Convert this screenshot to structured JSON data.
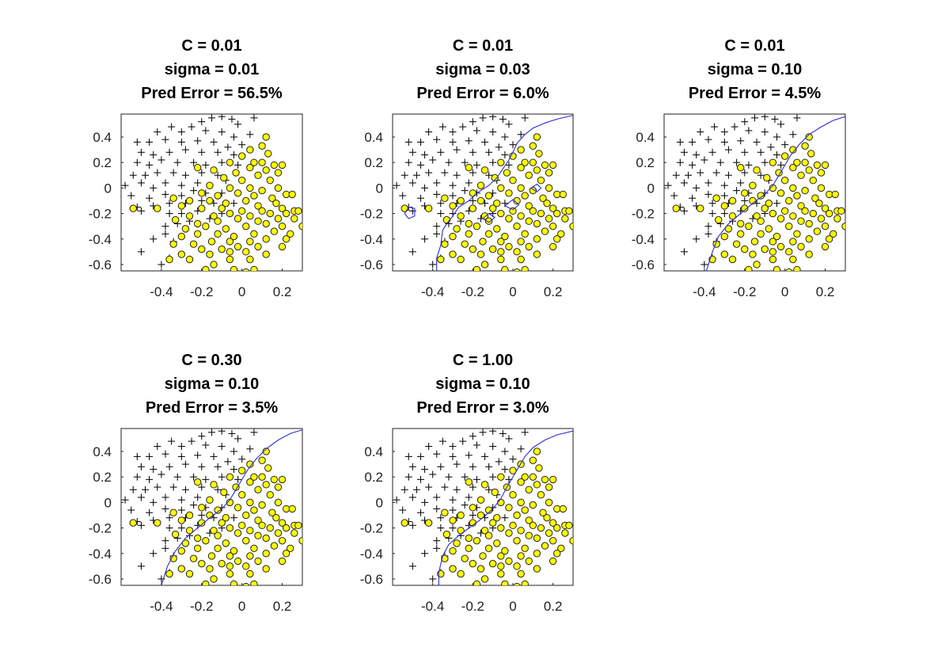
{
  "chart_data": [
    {
      "type": "scatter",
      "title": [
        "C = 0.01",
        "sigma = 0.01",
        "Pred Error = 56.5%"
      ],
      "xlim": [
        -0.6,
        0.3
      ],
      "ylim": [
        -0.65,
        0.58
      ],
      "xticks": [
        -0.4,
        -0.2,
        0,
        0.2
      ],
      "yticks": [
        0.4,
        0.2,
        0,
        -0.2,
        -0.4,
        -0.6
      ],
      "xticklabels": [
        "-0.4",
        "-0.2",
        "0",
        "0.2"
      ],
      "yticklabels": [
        "0.4",
        "0.2",
        "0",
        "-0.2",
        "-0.4",
        "-0.6"
      ],
      "decision_boundary": []
    },
    {
      "type": "scatter",
      "title": [
        "C = 0.01",
        "sigma = 0.03",
        "Pred Error = 6.0%"
      ],
      "xlim": [
        -0.6,
        0.3
      ],
      "ylim": [
        -0.65,
        0.58
      ],
      "xticks": [
        -0.4,
        -0.2,
        0,
        0.2
      ],
      "yticks": [
        0.4,
        0.2,
        0,
        -0.2,
        -0.4,
        -0.6
      ],
      "xticklabels": [
        "-0.4",
        "-0.2",
        "0",
        "0.2"
      ],
      "yticklabels": [
        "0.4",
        "0.2",
        "0",
        "-0.2",
        "-0.4",
        "-0.6"
      ],
      "decision_boundary": [
        [
          [
            -0.38,
            -0.65
          ],
          [
            -0.38,
            -0.55
          ],
          [
            -0.36,
            -0.45
          ],
          [
            -0.35,
            -0.33
          ],
          [
            -0.33,
            -0.28
          ],
          [
            -0.3,
            -0.22
          ],
          [
            -0.27,
            -0.15
          ],
          [
            -0.22,
            -0.1
          ],
          [
            -0.18,
            -0.04
          ],
          [
            -0.12,
            0.02
          ],
          [
            -0.08,
            0.08
          ],
          [
            -0.05,
            0.15
          ],
          [
            -0.02,
            0.22
          ],
          [
            0.0,
            0.28
          ],
          [
            0.02,
            0.35
          ],
          [
            0.06,
            0.42
          ],
          [
            0.1,
            0.47
          ],
          [
            0.16,
            0.51
          ],
          [
            0.22,
            0.54
          ],
          [
            0.3,
            0.57
          ]
        ],
        [
          [
            -0.54,
            -0.2
          ],
          [
            -0.52,
            -0.15
          ],
          [
            -0.49,
            -0.16
          ],
          [
            -0.49,
            -0.22
          ],
          [
            -0.52,
            -0.24
          ],
          [
            -0.54,
            -0.2
          ]
        ],
        [
          [
            -0.15,
            -0.24
          ],
          [
            -0.12,
            -0.2
          ],
          [
            -0.09,
            -0.23
          ],
          [
            -0.12,
            -0.27
          ],
          [
            -0.15,
            -0.24
          ]
        ],
        [
          [
            -0.04,
            -0.14
          ],
          [
            0.0,
            -0.09
          ],
          [
            0.03,
            -0.13
          ],
          [
            0.0,
            -0.17
          ],
          [
            -0.04,
            -0.14
          ]
        ],
        [
          [
            0.09,
            0.0
          ],
          [
            0.12,
            0.03
          ],
          [
            0.14,
            0.0
          ],
          [
            0.12,
            -0.03
          ],
          [
            0.09,
            0.0
          ]
        ]
      ]
    },
    {
      "type": "scatter",
      "title": [
        "C = 0.01",
        "sigma = 0.10",
        "Pred Error = 4.5%"
      ],
      "xlim": [
        -0.6,
        0.3
      ],
      "ylim": [
        -0.65,
        0.58
      ],
      "xticks": [
        -0.4,
        -0.2,
        0,
        0.2
      ],
      "yticks": [
        0.4,
        0.2,
        0,
        -0.2,
        -0.4,
        -0.6
      ],
      "xticklabels": [
        "-0.4",
        "-0.2",
        "0",
        "0.2"
      ],
      "yticklabels": [
        "0.4",
        "0.2",
        "0",
        "-0.2",
        "-0.4",
        "-0.6"
      ],
      "decision_boundary": [
        [
          [
            -0.39,
            -0.65
          ],
          [
            -0.36,
            -0.5
          ],
          [
            -0.33,
            -0.38
          ],
          [
            -0.28,
            -0.28
          ],
          [
            -0.22,
            -0.2
          ],
          [
            -0.16,
            -0.12
          ],
          [
            -0.1,
            -0.05
          ],
          [
            -0.06,
            0.02
          ],
          [
            -0.03,
            0.1
          ],
          [
            0.0,
            0.18
          ],
          [
            0.03,
            0.26
          ],
          [
            0.07,
            0.34
          ],
          [
            0.12,
            0.42
          ],
          [
            0.18,
            0.48
          ],
          [
            0.24,
            0.53
          ],
          [
            0.3,
            0.56
          ]
        ]
      ]
    },
    {
      "type": "scatter",
      "title": [
        "C = 0.30",
        "sigma = 0.10",
        "Pred Error = 3.5%"
      ],
      "xlim": [
        -0.6,
        0.3
      ],
      "ylim": [
        -0.65,
        0.58
      ],
      "xticks": [
        -0.4,
        -0.2,
        0,
        0.2
      ],
      "yticks": [
        0.4,
        0.2,
        0,
        -0.2,
        -0.4,
        -0.6
      ],
      "xticklabels": [
        "-0.4",
        "-0.2",
        "0",
        "0.2"
      ],
      "yticklabels": [
        "0.4",
        "0.2",
        "0",
        "-0.2",
        "-0.4",
        "-0.6"
      ],
      "decision_boundary": [
        [
          [
            -0.4,
            -0.65
          ],
          [
            -0.37,
            -0.5
          ],
          [
            -0.33,
            -0.38
          ],
          [
            -0.28,
            -0.28
          ],
          [
            -0.22,
            -0.2
          ],
          [
            -0.16,
            -0.12
          ],
          [
            -0.1,
            -0.05
          ],
          [
            -0.06,
            0.02
          ],
          [
            -0.03,
            0.1
          ],
          [
            0.0,
            0.18
          ],
          [
            0.03,
            0.26
          ],
          [
            0.07,
            0.34
          ],
          [
            0.12,
            0.42
          ],
          [
            0.18,
            0.49
          ],
          [
            0.24,
            0.54
          ],
          [
            0.3,
            0.57
          ]
        ]
      ]
    },
    {
      "type": "scatter",
      "title": [
        "C = 1.00",
        "sigma = 0.10",
        "Pred Error = 3.0%"
      ],
      "xlim": [
        -0.6,
        0.3
      ],
      "ylim": [
        -0.65,
        0.58
      ],
      "xticks": [
        -0.4,
        -0.2,
        0,
        0.2
      ],
      "yticks": [
        0.4,
        0.2,
        0,
        -0.2,
        -0.4,
        -0.6
      ],
      "xticklabels": [
        "-0.4",
        "-0.2",
        "0",
        "0.2"
      ],
      "yticklabels": [
        "0.4",
        "0.2",
        "0",
        "-0.2",
        "-0.4",
        "-0.6"
      ],
      "decision_boundary": [
        [
          [
            -0.37,
            -0.65
          ],
          [
            -0.37,
            -0.55
          ],
          [
            -0.35,
            -0.42
          ],
          [
            -0.32,
            -0.33
          ],
          [
            -0.27,
            -0.26
          ],
          [
            -0.21,
            -0.19
          ],
          [
            -0.15,
            -0.12
          ],
          [
            -0.1,
            -0.05
          ],
          [
            -0.06,
            0.03
          ],
          [
            -0.03,
            0.12
          ],
          [
            0.0,
            0.2
          ],
          [
            0.03,
            0.28
          ],
          [
            0.06,
            0.36
          ],
          [
            0.1,
            0.43
          ],
          [
            0.16,
            0.49
          ],
          [
            0.22,
            0.53
          ],
          [
            0.3,
            0.56
          ]
        ]
      ]
    }
  ],
  "shared_points": {
    "plus_class": [
      [
        -0.05,
        0.54
      ],
      [
        -0.1,
        0.56
      ],
      [
        -0.15,
        0.55
      ],
      [
        -0.02,
        0.5
      ],
      [
        0.06,
        0.55
      ],
      [
        -0.2,
        0.52
      ],
      [
        -0.25,
        0.48
      ],
      [
        -0.35,
        0.48
      ],
      [
        -0.42,
        0.44
      ],
      [
        -0.3,
        0.44
      ],
      [
        -0.18,
        0.45
      ],
      [
        -0.1,
        0.44
      ],
      [
        -0.04,
        0.4
      ],
      [
        0.04,
        0.42
      ],
      [
        -0.52,
        0.36
      ],
      [
        -0.46,
        0.36
      ],
      [
        -0.38,
        0.38
      ],
      [
        -0.3,
        0.36
      ],
      [
        -0.22,
        0.37
      ],
      [
        -0.14,
        0.36
      ],
      [
        -0.07,
        0.32
      ],
      [
        0.0,
        0.34
      ],
      [
        -0.5,
        0.28
      ],
      [
        -0.44,
        0.26
      ],
      [
        -0.36,
        0.28
      ],
      [
        -0.28,
        0.3
      ],
      [
        -0.2,
        0.28
      ],
      [
        -0.12,
        0.28
      ],
      [
        -0.04,
        0.26
      ],
      [
        -0.52,
        0.2
      ],
      [
        -0.46,
        0.18
      ],
      [
        -0.4,
        0.22
      ],
      [
        -0.32,
        0.2
      ],
      [
        -0.24,
        0.2
      ],
      [
        -0.18,
        0.18
      ],
      [
        -0.1,
        0.2
      ],
      [
        -0.02,
        0.18
      ],
      [
        -0.54,
        0.1
      ],
      [
        -0.48,
        0.1
      ],
      [
        -0.42,
        0.12
      ],
      [
        -0.34,
        0.12
      ],
      [
        -0.28,
        0.1
      ],
      [
        -0.2,
        0.12
      ],
      [
        -0.12,
        0.1
      ],
      [
        -0.58,
        0.02
      ],
      [
        -0.5,
        0.04
      ],
      [
        -0.44,
        0.0
      ],
      [
        -0.38,
        0.04
      ],
      [
        -0.3,
        0.02
      ],
      [
        -0.22,
        0.04
      ],
      [
        -0.16,
        0.02
      ],
      [
        -0.08,
        0.06
      ],
      [
        -0.55,
        -0.06
      ],
      [
        -0.46,
        -0.08
      ],
      [
        -0.38,
        -0.05
      ],
      [
        -0.3,
        -0.06
      ],
      [
        -0.24,
        -0.02
      ],
      [
        -0.18,
        -0.04
      ],
      [
        -0.1,
        -0.04
      ],
      [
        -0.52,
        -0.15
      ],
      [
        -0.44,
        -0.14
      ],
      [
        -0.36,
        -0.12
      ],
      [
        -0.28,
        -0.12
      ],
      [
        -0.2,
        -0.1
      ],
      [
        -0.14,
        -0.12
      ],
      [
        -0.04,
        -0.12
      ],
      [
        -0.5,
        -0.18
      ],
      [
        -0.36,
        -0.2
      ],
      [
        -0.3,
        -0.2
      ],
      [
        -0.22,
        -0.18
      ],
      [
        -0.16,
        -0.24
      ],
      [
        -0.1,
        -0.2
      ],
      [
        -0.38,
        -0.3
      ],
      [
        -0.32,
        -0.28
      ],
      [
        -0.26,
        -0.26
      ],
      [
        -0.44,
        -0.4
      ],
      [
        -0.38,
        -0.36
      ],
      [
        -0.34,
        -0.42
      ],
      [
        -0.5,
        -0.5
      ],
      [
        -0.36,
        -0.55
      ],
      [
        -0.4,
        -0.6
      ]
    ],
    "circle_class": [
      [
        0.12,
        0.4
      ],
      [
        0.1,
        0.33
      ],
      [
        0.04,
        0.3
      ],
      [
        0.13,
        0.27
      ],
      [
        0.0,
        0.25
      ],
      [
        0.06,
        0.2
      ],
      [
        0.1,
        0.2
      ],
      [
        0.16,
        0.18
      ],
      [
        -0.06,
        0.2
      ],
      [
        0.04,
        0.16
      ],
      [
        0.12,
        0.14
      ],
      [
        0.2,
        0.18
      ],
      [
        -0.03,
        0.12
      ],
      [
        0.08,
        0.1
      ],
      [
        0.18,
        0.12
      ],
      [
        -0.14,
        0.14
      ],
      [
        -0.22,
        0.16
      ],
      [
        -0.09,
        0.08
      ],
      [
        0.0,
        0.06
      ],
      [
        0.14,
        0.06
      ],
      [
        -0.06,
        0.0
      ],
      [
        0.04,
        0.0
      ],
      [
        0.1,
        -0.02
      ],
      [
        0.18,
        0.0
      ],
      [
        -0.16,
        0.02
      ],
      [
        -0.2,
        -0.04
      ],
      [
        -0.12,
        -0.06
      ],
      [
        -0.02,
        -0.04
      ],
      [
        0.06,
        -0.06
      ],
      [
        0.15,
        -0.08
      ],
      [
        0.22,
        -0.05
      ],
      [
        0.25,
        -0.05
      ],
      [
        -0.34,
        -0.08
      ],
      [
        -0.26,
        -0.1
      ],
      [
        -0.16,
        -0.1
      ],
      [
        -0.08,
        -0.12
      ],
      [
        0.02,
        -0.1
      ],
      [
        0.08,
        -0.14
      ],
      [
        0.17,
        -0.12
      ],
      [
        -0.42,
        -0.16
      ],
      [
        -0.3,
        -0.14
      ],
      [
        -0.2,
        -0.16
      ],
      [
        -0.1,
        -0.16
      ],
      [
        0.0,
        -0.18
      ],
      [
        0.1,
        -0.18
      ],
      [
        0.2,
        -0.16
      ],
      [
        0.26,
        -0.18
      ],
      [
        0.28,
        -0.18
      ],
      [
        -0.54,
        -0.16
      ],
      [
        -0.26,
        -0.22
      ],
      [
        -0.14,
        -0.22
      ],
      [
        -0.06,
        -0.2
      ],
      [
        0.04,
        -0.22
      ],
      [
        0.14,
        -0.2
      ],
      [
        0.22,
        -0.2
      ],
      [
        -0.33,
        -0.25
      ],
      [
        -0.22,
        -0.28
      ],
      [
        -0.12,
        -0.26
      ],
      [
        -0.02,
        -0.24
      ],
      [
        0.08,
        -0.26
      ],
      [
        0.18,
        -0.24
      ],
      [
        0.26,
        -0.24
      ],
      [
        -0.28,
        -0.32
      ],
      [
        -0.18,
        -0.3
      ],
      [
        -0.08,
        -0.32
      ],
      [
        0.02,
        -0.3
      ],
      [
        0.12,
        -0.28
      ],
      [
        0.2,
        -0.3
      ],
      [
        0.3,
        -0.3
      ],
      [
        -0.3,
        -0.38
      ],
      [
        -0.22,
        -0.36
      ],
      [
        -0.12,
        -0.36
      ],
      [
        -0.04,
        -0.38
      ],
      [
        0.06,
        -0.36
      ],
      [
        0.16,
        -0.34
      ],
      [
        0.24,
        -0.36
      ],
      [
        -0.34,
        -0.44
      ],
      [
        -0.24,
        -0.44
      ],
      [
        -0.15,
        -0.42
      ],
      [
        -0.06,
        -0.42
      ],
      [
        0.04,
        -0.42
      ],
      [
        0.12,
        -0.4
      ],
      [
        0.22,
        -0.4
      ],
      [
        -0.3,
        -0.52
      ],
      [
        -0.2,
        -0.48
      ],
      [
        -0.1,
        -0.48
      ],
      [
        -0.02,
        -0.46
      ],
      [
        0.08,
        -0.46
      ],
      [
        0.2,
        -0.46
      ],
      [
        -0.36,
        -0.56
      ],
      [
        -0.26,
        -0.56
      ],
      [
        -0.16,
        -0.52
      ],
      [
        -0.06,
        -0.5
      ],
      [
        0.02,
        -0.5
      ],
      [
        0.12,
        -0.52
      ],
      [
        -0.14,
        -0.6
      ],
      [
        -0.06,
        -0.56
      ],
      [
        0.04,
        -0.56
      ],
      [
        -0.04,
        -0.64
      ],
      [
        0.02,
        -0.66
      ],
      [
        0.06,
        -0.64
      ],
      [
        -0.18,
        -0.64
      ]
    ]
  }
}
